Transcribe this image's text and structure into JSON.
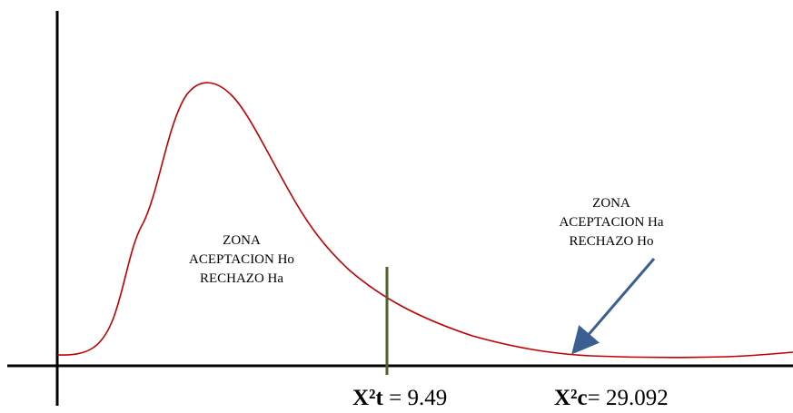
{
  "zones": {
    "ho": {
      "line1": "ZONA",
      "line2": "ACEPTACION Ho",
      "line3": "RECHAZO Ha"
    },
    "ha": {
      "line1": "ZONA",
      "line2": "ACEPTACION Ha",
      "line3": "RECHAZO Ho"
    }
  },
  "critical_value": {
    "symbol": "X²t",
    "value": " = 9.49"
  },
  "calculated_value": {
    "symbol": "X²c",
    "value": "= 29.092"
  },
  "colors": {
    "curve": "#c00000",
    "critical_line": "#4f6228",
    "arrow": "#3b5f91",
    "axes": "#000000"
  }
}
